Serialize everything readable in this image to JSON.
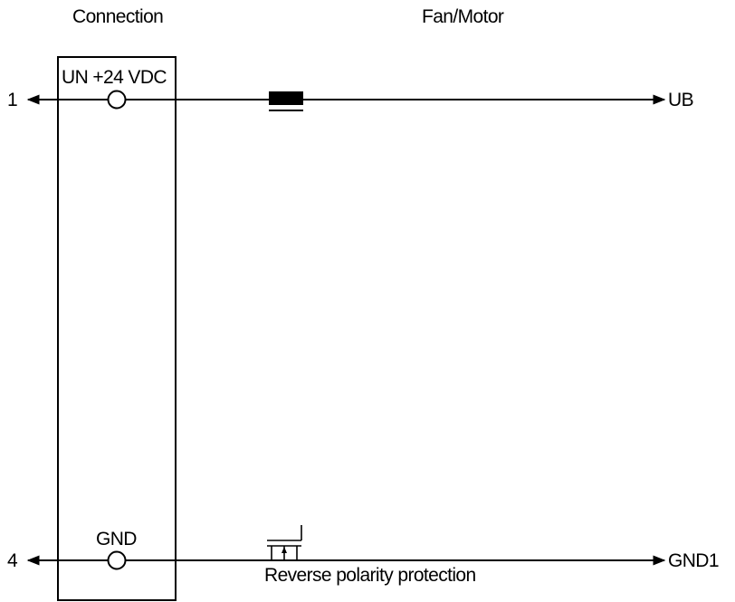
{
  "diagram": {
    "headings": {
      "connection": "Connection",
      "fan_motor": "Fan/Motor"
    },
    "terminals": {
      "top": {
        "pin": "1",
        "label": "UN +24 VDC",
        "output": "UB"
      },
      "bottom": {
        "pin": "4",
        "label": "GND",
        "output": "GND1"
      }
    },
    "components": {
      "mosfet_caption": "Reverse polarity protection"
    },
    "colors": {
      "line": "#000000",
      "background": "#ffffff"
    }
  }
}
